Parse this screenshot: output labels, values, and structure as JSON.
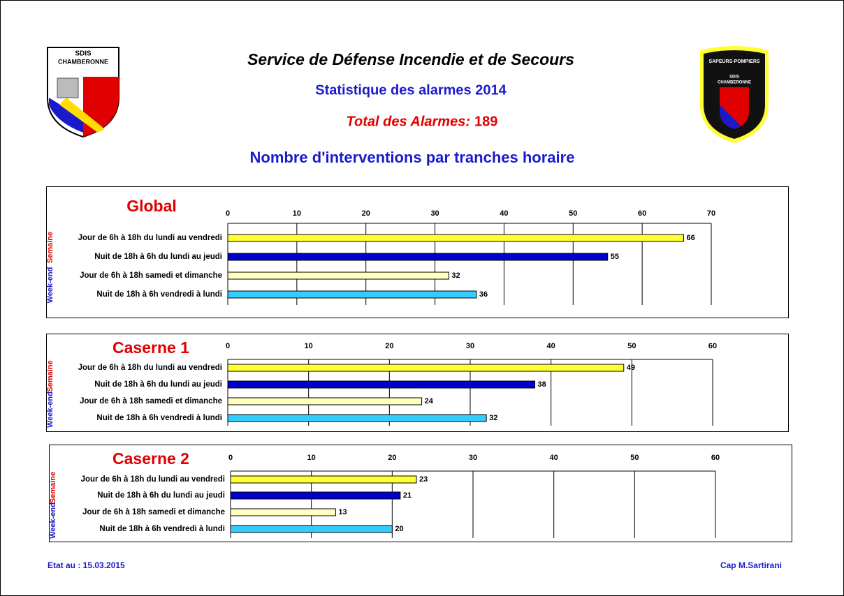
{
  "header": {
    "title": "Service de Défense Incendie et de Secours",
    "subtitle": "Statistique des alarmes 2014",
    "total_label": "Total des Alarmes:",
    "total_value": "189",
    "heading": "Nombre d'interventions par tranches horaire",
    "logo_left": [
      "SDIS",
      "CHAMBERONNE"
    ],
    "logo_right": [
      "SAPEURS-POMPIERS",
      "SDIS",
      "CHAMBERONNE"
    ]
  },
  "footer": {
    "date": "Etat au : 15.03.2015",
    "author": "Cap M.Sartirani"
  },
  "chart_data": [
    {
      "type": "barh",
      "title": "Global",
      "groups": [
        "Semaine",
        "Week-end"
      ],
      "categories": [
        "Jour de 6h à 18h du lundi au vendredi",
        "Nuit de 18h à 6h du lundi au jeudi",
        "Jour de 6h à 18h samedi et dimanche",
        "Nuit de 18h à 6h vendredi à lundi"
      ],
      "values": [
        66,
        55,
        32,
        36
      ],
      "colors": [
        "#ffff33",
        "#0000cc",
        "#ffffc0",
        "#33ccff"
      ],
      "xlim": [
        0,
        70
      ],
      "xticks": [
        0,
        10,
        20,
        30,
        40,
        50,
        60,
        70
      ],
      "grid": true
    },
    {
      "type": "barh",
      "title": "Caserne 1",
      "groups": [
        "Semaine",
        "Week-end"
      ],
      "categories": [
        "Jour de 6h à 18h du lundi au vendredi",
        "Nuit de 18h à 6h du lundi au jeudi",
        "Jour de 6h à 18h samedi et dimanche",
        "Nuit de 18h à 6h vendredi à lundi"
      ],
      "values": [
        49,
        38,
        24,
        32
      ],
      "colors": [
        "#ffff33",
        "#0000cc",
        "#ffffc0",
        "#33ccff"
      ],
      "xlim": [
        0,
        60
      ],
      "xticks": [
        0,
        10,
        20,
        30,
        40,
        50,
        60
      ],
      "grid": true
    },
    {
      "type": "barh",
      "title": "Caserne 2",
      "groups": [
        "Semaine",
        "Week-end"
      ],
      "categories": [
        "Jour de 6h à 18h du lundi au vendredi",
        "Nuit de 18h à 6h du lundi au jeudi",
        "Jour de 6h à 18h samedi et dimanche",
        "Nuit de 18h à 6h vendredi à lundi"
      ],
      "values": [
        23,
        21,
        13,
        20
      ],
      "colors": [
        "#ffff33",
        "#0000cc",
        "#ffffc0",
        "#33ccff"
      ],
      "xlim": [
        0,
        60
      ],
      "xticks": [
        0,
        10,
        20,
        30,
        40,
        50,
        60
      ],
      "grid": true
    }
  ]
}
